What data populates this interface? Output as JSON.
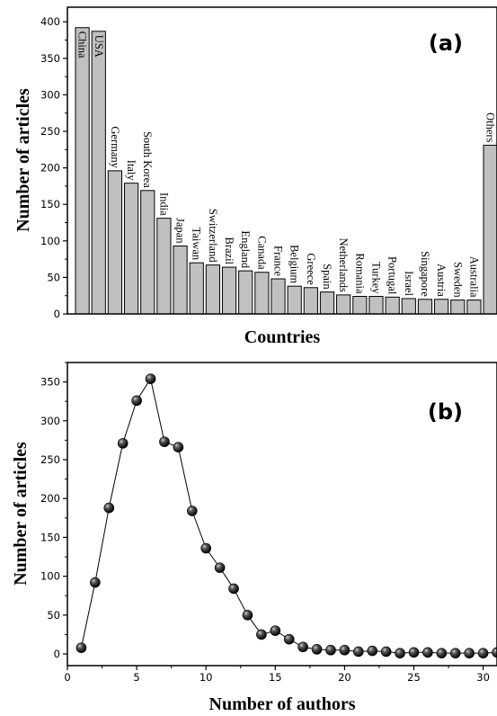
{
  "chart_data": [
    {
      "type": "bar",
      "panel_label": "(a)",
      "xlabel": "Countries",
      "ylabel": "Number of articles",
      "ylim": [
        0,
        420
      ],
      "yticks": [
        "0",
        "50",
        "100",
        "150",
        "200",
        "250",
        "300",
        "350",
        "400"
      ],
      "grid": false,
      "bar_color": "#c0c0c0",
      "categories": [
        "China",
        "USA",
        "Germany",
        "Italy",
        "South Korea",
        "India",
        "Japan",
        "Taiwan",
        "Switzerland",
        "Brazil",
        "England",
        "Canada",
        "France",
        "Belgium",
        "Greece",
        "Spain",
        "Netherlands",
        "Romania",
        "Turkey",
        "Portugal",
        "Israel",
        "Singapore",
        "Austria",
        "Sweden",
        "Australia",
        "Others"
      ],
      "values": [
        392,
        387,
        196,
        179,
        169,
        131,
        93,
        70,
        67,
        64,
        59,
        57,
        48,
        38,
        36,
        30,
        26,
        24,
        24,
        23,
        21,
        20,
        20,
        19,
        19,
        231
      ]
    },
    {
      "type": "line",
      "panel_label": "(b)",
      "xlabel": "Number of authors",
      "ylabel": "Number of articles",
      "xlim": [
        0,
        31
      ],
      "ylim": [
        -15,
        375
      ],
      "xticks": [
        "0",
        "5",
        "10",
        "15",
        "20",
        "25",
        "30"
      ],
      "yticks": [
        "0",
        "50",
        "100",
        "150",
        "200",
        "250",
        "300",
        "350"
      ],
      "grid": false,
      "marker": "sphere",
      "series": [
        {
          "x": [
            1,
            2,
            3,
            4,
            5,
            6,
            7,
            8,
            9,
            10,
            11,
            12,
            13,
            14,
            15,
            16,
            17,
            18,
            19,
            20,
            21,
            22,
            23,
            24,
            25,
            26,
            27,
            28,
            29,
            30,
            31
          ],
          "values": [
            8,
            92,
            188,
            271,
            326,
            354,
            273,
            266,
            184,
            136,
            111,
            84,
            50,
            25,
            30,
            19,
            9,
            6,
            5,
            5,
            3,
            4,
            3,
            1,
            2,
            2,
            1,
            1,
            1,
            1,
            2
          ]
        }
      ]
    }
  ]
}
